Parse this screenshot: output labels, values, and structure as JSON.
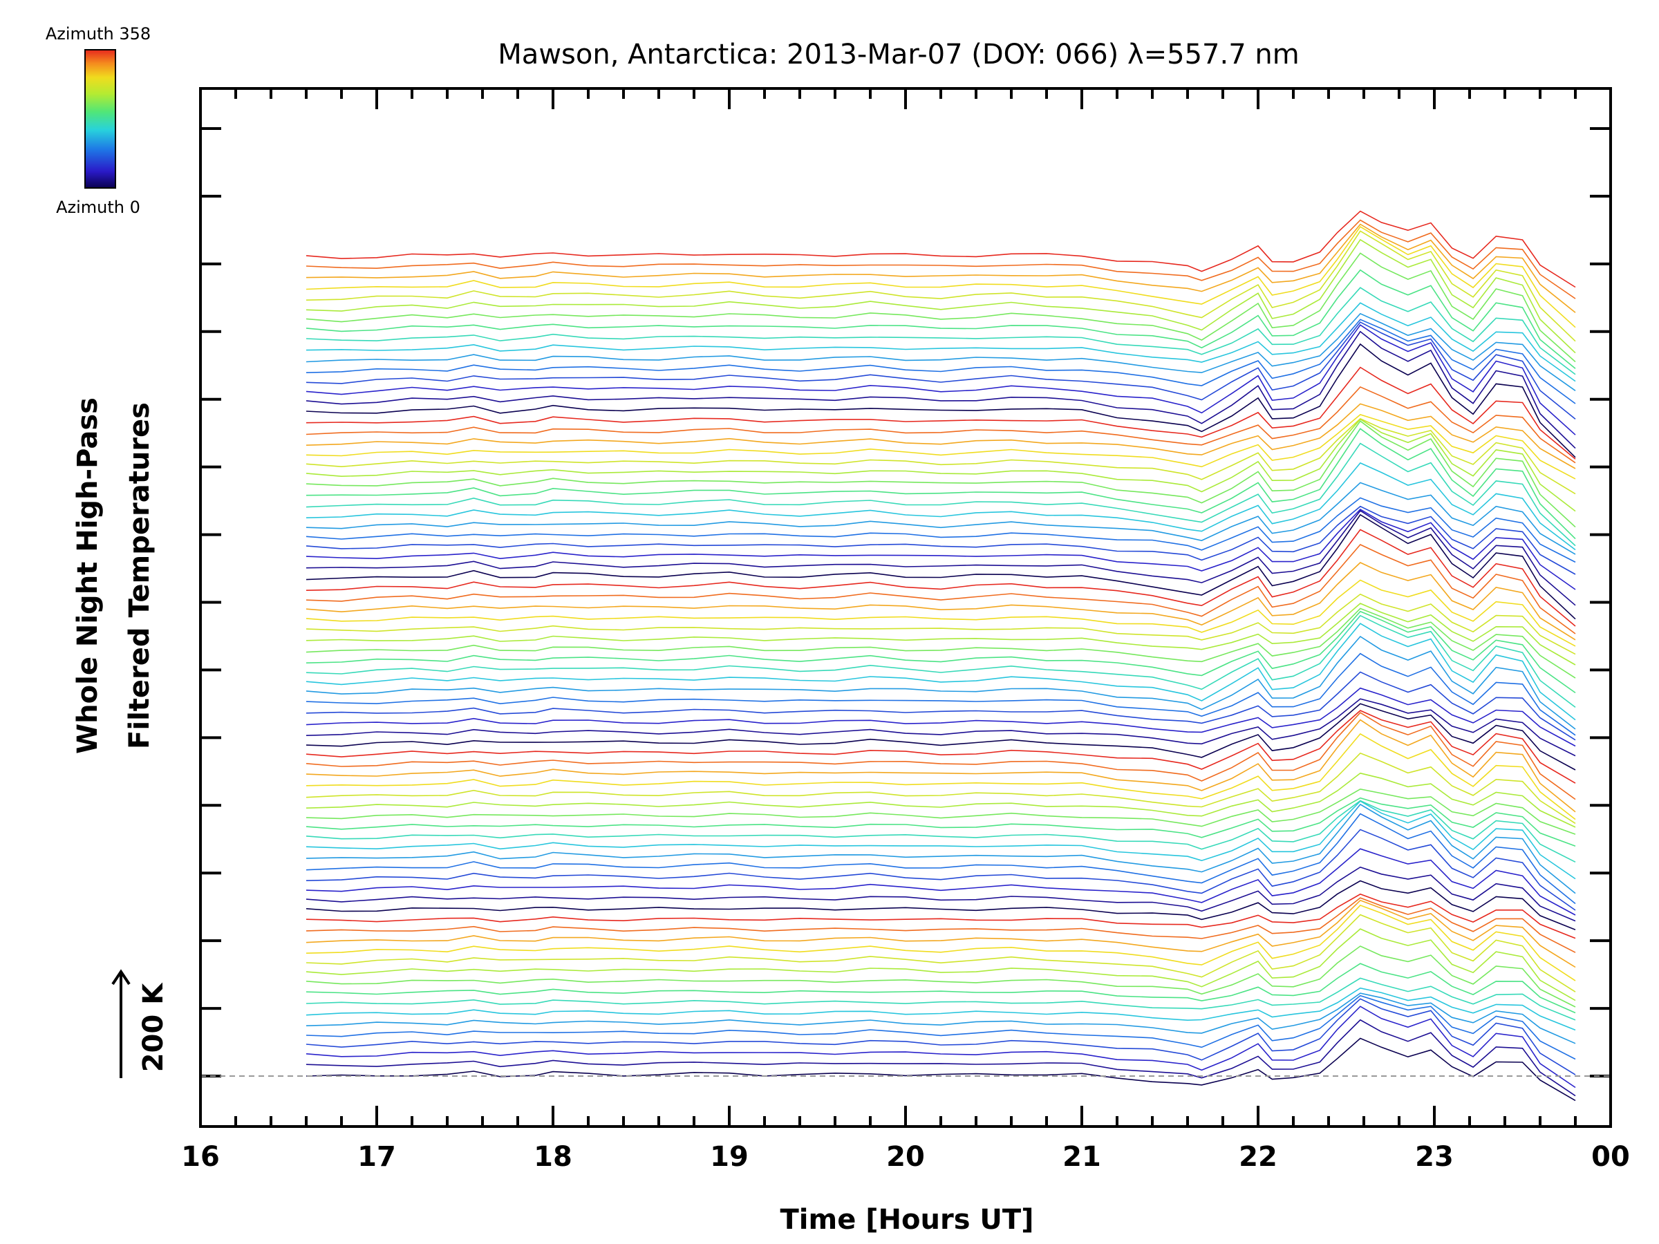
{
  "chart_data": {
    "type": "line",
    "title": "Mawson, Antarctica: 2013-Mar-07 (DOY: 066) λ=557.7 nm",
    "xlabel": "Time [Hours UT]",
    "ylabel_line1": "Whole Night High-Pass",
    "ylabel_line2": "Filtered Temperatures",
    "scale_label": "200 K",
    "colorbar": {
      "top_label": "Azimuth 358",
      "bottom_label": "Azimuth 0",
      "min": 0,
      "max": 358
    },
    "xlim": [
      16,
      24
    ],
    "x_ticks": [
      "16",
      "17",
      "18",
      "19",
      "20",
      "21",
      "22",
      "23",
      "00"
    ],
    "x_tick_values": [
      16,
      17,
      18,
      19,
      20,
      21,
      22,
      23,
      24
    ],
    "y_tick_count": 15,
    "data_x_range": [
      16.6,
      23.8
    ],
    "stack": {
      "groups": 5,
      "traces_per_group": 16,
      "trace_spacing_K": 20
    },
    "reference_baseline": true,
    "base_profile": {
      "x": [
        16.6,
        16.8,
        17.0,
        17.2,
        17.4,
        17.55,
        17.7,
        17.9,
        18.0,
        18.2,
        18.4,
        18.6,
        18.8,
        19.0,
        19.2,
        19.4,
        19.6,
        19.8,
        20.0,
        20.2,
        20.4,
        20.6,
        20.8,
        21.0,
        21.2,
        21.4,
        21.6,
        21.68,
        21.85,
        22.0,
        22.08,
        22.2,
        22.35,
        22.45,
        22.58,
        22.7,
        22.85,
        22.98,
        23.1,
        23.22,
        23.35,
        23.5,
        23.6,
        23.8
      ],
      "y": [
        0,
        -1,
        1,
        3,
        2,
        7,
        1,
        3,
        6,
        4,
        3,
        3,
        4,
        6,
        3,
        2,
        3,
        6,
        3,
        1,
        3,
        5,
        3,
        2,
        -4,
        -8,
        -15,
        -20,
        -2,
        15,
        -8,
        -5,
        8,
        35,
        70,
        55,
        40,
        50,
        15,
        0,
        30,
        25,
        -10,
        -45
      ]
    }
  }
}
